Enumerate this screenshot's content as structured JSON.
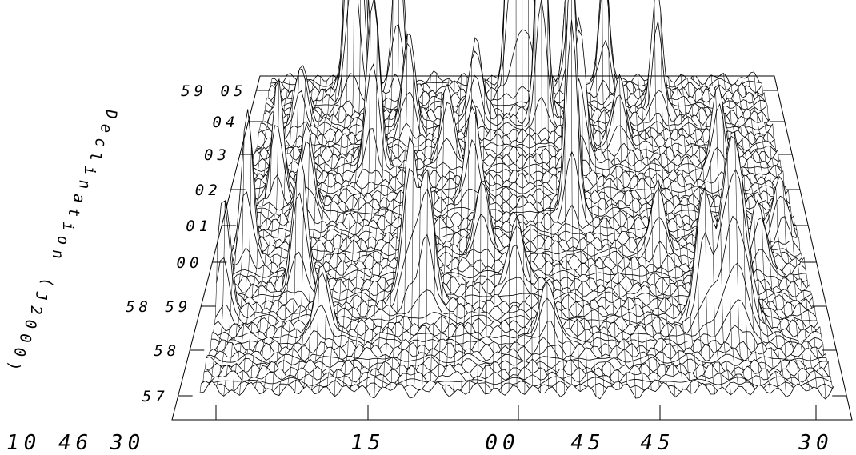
{
  "chart_data": {
    "type": "surface",
    "xlabel": "",
    "ylabel": "Declination (J2000)",
    "x_tick_labels": [
      "10 46 30",
      "15",
      "00",
      "45",
      "45",
      "30"
    ],
    "y_tick_labels": [
      "57",
      "58",
      "58 59",
      "00",
      "01",
      "02",
      "03",
      "04",
      "59 05"
    ],
    "grid": false,
    "surface": {
      "x_range": [
        0,
        1
      ],
      "y_range": [
        0,
        1
      ],
      "baseline_noise": 0.06,
      "peaks": [
        {
          "x": 0.18,
          "y": 0.97,
          "height": 0.95,
          "width": 0.012
        },
        {
          "x": 0.17,
          "y": 0.96,
          "height": 0.95,
          "width": 0.012
        },
        {
          "x": 0.26,
          "y": 0.98,
          "height": 0.55,
          "width": 0.01
        },
        {
          "x": 0.49,
          "y": 0.98,
          "height": 0.75,
          "width": 0.01
        },
        {
          "x": 0.51,
          "y": 0.97,
          "height": 0.7,
          "width": 0.01
        },
        {
          "x": 0.55,
          "y": 0.88,
          "height": 0.9,
          "width": 0.01
        },
        {
          "x": 0.53,
          "y": 0.97,
          "height": 0.4,
          "width": 0.01
        },
        {
          "x": 0.61,
          "y": 0.99,
          "height": 0.45,
          "width": 0.01
        },
        {
          "x": 0.68,
          "y": 0.98,
          "height": 0.4,
          "width": 0.01
        },
        {
          "x": 0.23,
          "y": 0.72,
          "height": 0.55,
          "width": 0.012
        },
        {
          "x": 0.62,
          "y": 0.75,
          "height": 0.45,
          "width": 0.012
        },
        {
          "x": 0.6,
          "y": 0.57,
          "height": 0.8,
          "width": 0.01
        },
        {
          "x": 0.06,
          "y": 0.63,
          "height": 0.35,
          "width": 0.01
        },
        {
          "x": 0.42,
          "y": 0.62,
          "height": 0.3,
          "width": 0.012
        },
        {
          "x": 0.32,
          "y": 0.3,
          "height": 0.5,
          "width": 0.012
        },
        {
          "x": 0.35,
          "y": 0.28,
          "height": 0.4,
          "width": 0.012
        },
        {
          "x": 0.13,
          "y": 0.33,
          "height": 0.4,
          "width": 0.012
        },
        {
          "x": 0.86,
          "y": 0.22,
          "height": 0.6,
          "width": 0.02
        },
        {
          "x": 0.81,
          "y": 0.22,
          "height": 0.42,
          "width": 0.012
        },
        {
          "x": 0.03,
          "y": 0.42,
          "height": 0.5,
          "width": 0.01
        },
        {
          "x": 0.01,
          "y": 0.25,
          "height": 0.4,
          "width": 0.01
        },
        {
          "x": 0.78,
          "y": 0.9,
          "height": 0.4,
          "width": 0.01
        },
        {
          "x": 0.42,
          "y": 0.88,
          "height": 0.25,
          "width": 0.012
        },
        {
          "x": 0.29,
          "y": 0.84,
          "height": 0.3,
          "width": 0.012
        },
        {
          "x": 0.88,
          "y": 0.7,
          "height": 0.28,
          "width": 0.012
        },
        {
          "x": 0.75,
          "y": 0.45,
          "height": 0.22,
          "width": 0.012
        },
        {
          "x": 0.12,
          "y": 0.57,
          "height": 0.28,
          "width": 0.012
        },
        {
          "x": 0.44,
          "y": 0.45,
          "height": 0.22,
          "width": 0.012
        },
        {
          "x": 0.92,
          "y": 0.4,
          "height": 0.2,
          "width": 0.012
        },
        {
          "x": 0.7,
          "y": 0.8,
          "height": 0.2,
          "width": 0.012
        },
        {
          "x": 0.37,
          "y": 0.74,
          "height": 0.22,
          "width": 0.012
        },
        {
          "x": 0.18,
          "y": 0.18,
          "height": 0.22,
          "width": 0.012
        },
        {
          "x": 0.55,
          "y": 0.17,
          "height": 0.18,
          "width": 0.012
        },
        {
          "x": 0.97,
          "y": 0.5,
          "height": 0.18,
          "width": 0.012
        },
        {
          "x": 0.08,
          "y": 0.85,
          "height": 0.2,
          "width": 0.012
        },
        {
          "x": 0.5,
          "y": 0.35,
          "height": 0.2,
          "width": 0.012
        }
      ]
    }
  }
}
